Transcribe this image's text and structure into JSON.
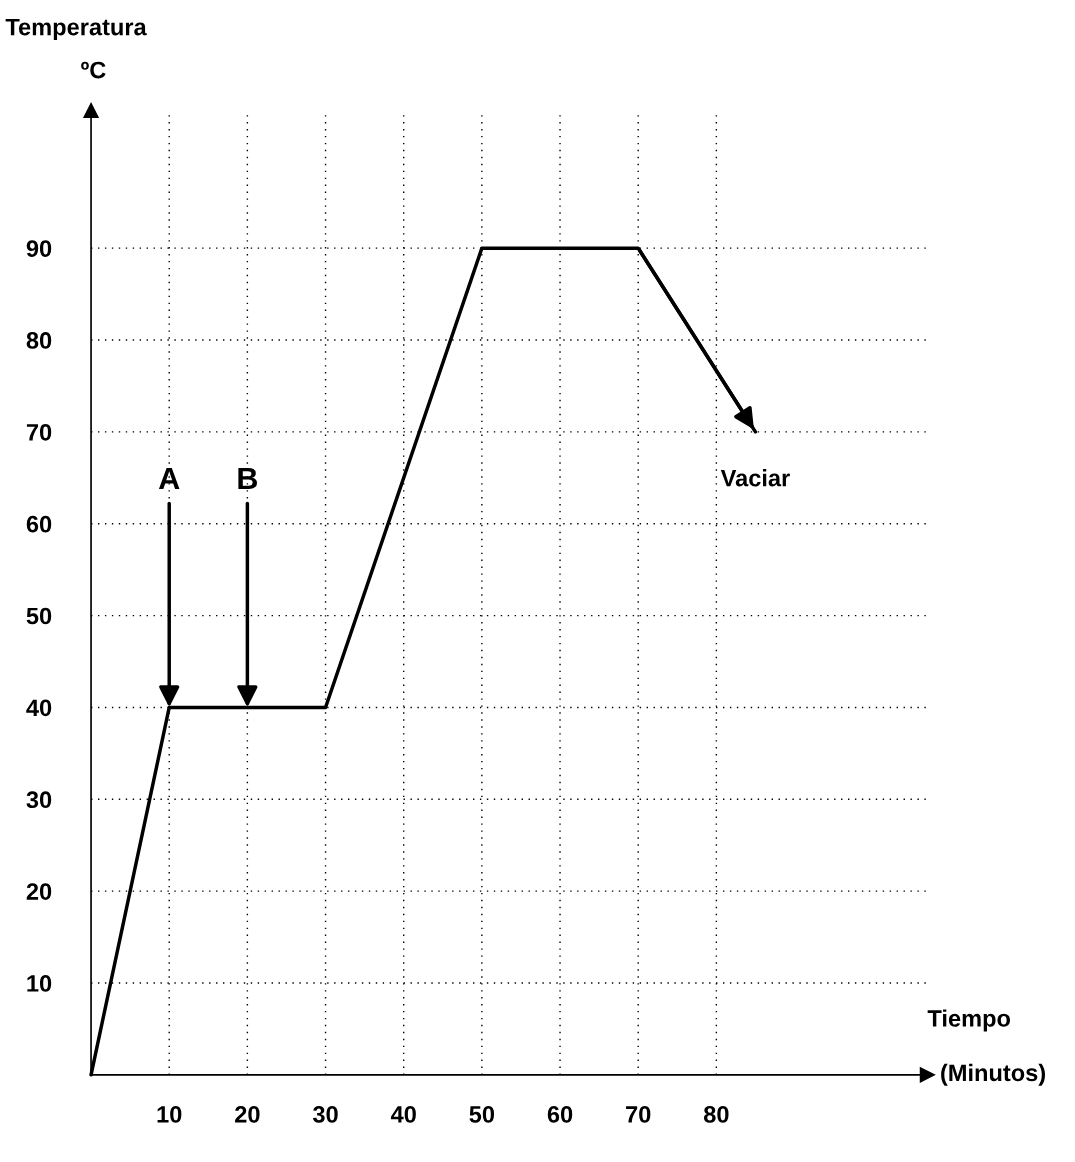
{
  "chart_data": {
    "type": "line",
    "xlabel": "Tiempo\n(Minutos)",
    "ylabel": "Temperatura\nºC",
    "x": [
      0,
      10,
      30,
      50,
      70,
      85
    ],
    "series": [
      {
        "color": "#000000",
        "values": [
          0,
          40,
          40,
          90,
          90,
          70
        ]
      }
    ],
    "xlim": [
      0,
      107
    ],
    "ylim": [
      0,
      105
    ],
    "xticks": [
      10,
      20,
      30,
      40,
      50,
      60,
      70,
      80
    ],
    "yticks": [
      10,
      20,
      30,
      40,
      50,
      60,
      70,
      80,
      90
    ],
    "grid": true,
    "line_style": "solid",
    "marker": "none",
    "annotations": [
      {
        "text": "A",
        "x": 10,
        "y": 40
      },
      {
        "text": "B",
        "x": 20,
        "y": 40
      },
      {
        "text": "Vaciar",
        "x": 85,
        "y": 70
      }
    ]
  }
}
